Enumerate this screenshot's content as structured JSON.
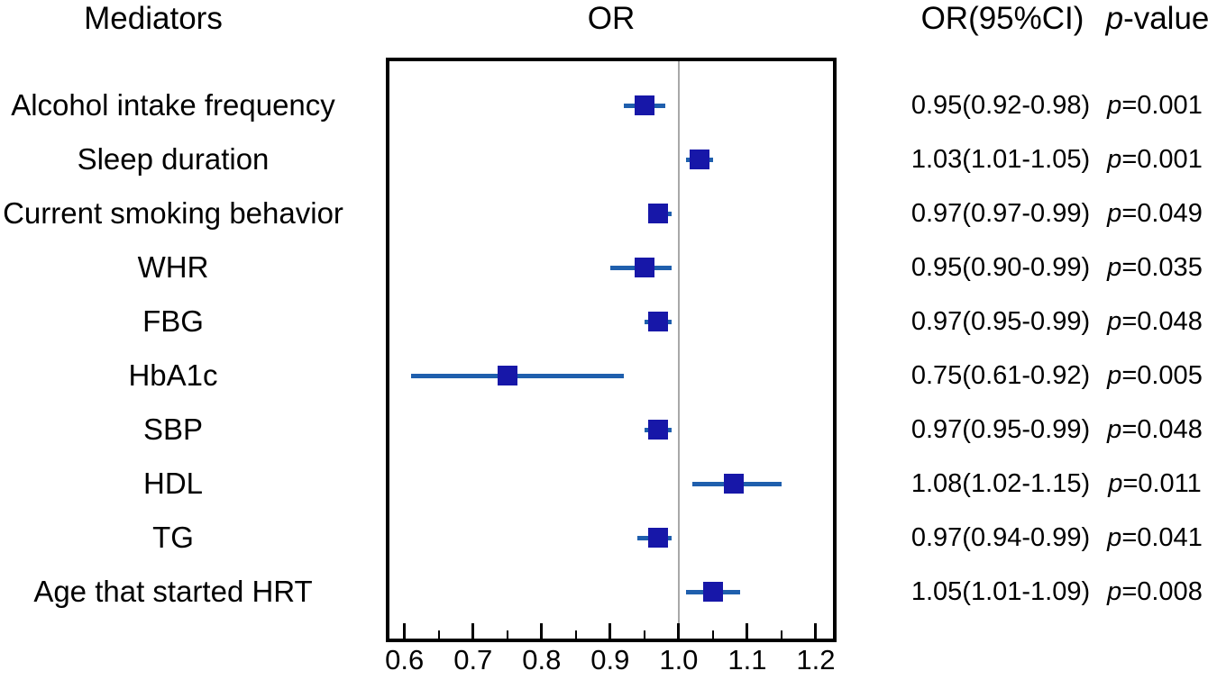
{
  "headers": {
    "mediators": "Mediators",
    "or": "OR",
    "or_ci": "OR(95%CI)",
    "p_value": "p-value"
  },
  "colors": {
    "marker": "#1717a8",
    "ci_line": "#1f5fad",
    "ref_line": "#a8a8a8",
    "box_border": "#000000",
    "text": "#000000"
  },
  "chart_data": {
    "type": "scatter",
    "subtype": "forest-plot",
    "title": "",
    "xlabel": "",
    "ylabel": "",
    "legend": null,
    "grid": false,
    "x_axis": {
      "range": [
        0.578,
        1.225
      ],
      "major_ticks": [
        0.6,
        0.7,
        0.8,
        0.9,
        1.0,
        1.1,
        1.2
      ],
      "minor_ticks": [
        0.65,
        0.75,
        0.85,
        0.95,
        1.05,
        1.15
      ],
      "reference_line": 1.0
    },
    "rows": [
      {
        "label": "Alcohol intake frequency",
        "or": 0.95,
        "ci_low": 0.92,
        "ci_high": 0.98,
        "or_ci": "0.95(0.92-0.98)",
        "p": "p=0.001"
      },
      {
        "label": "Sleep duration",
        "or": 1.03,
        "ci_low": 1.01,
        "ci_high": 1.05,
        "or_ci": "1.03(1.01-1.05)",
        "p": "p=0.001"
      },
      {
        "label": "Current smoking behavior",
        "or": 0.97,
        "ci_low": 0.97,
        "ci_high": 0.99,
        "or_ci": "0.97(0.97-0.99)",
        "p": "p=0.049"
      },
      {
        "label": "WHR",
        "or": 0.95,
        "ci_low": 0.9,
        "ci_high": 0.99,
        "or_ci": "0.95(0.90-0.99)",
        "p": "p=0.035"
      },
      {
        "label": "FBG",
        "or": 0.97,
        "ci_low": 0.95,
        "ci_high": 0.99,
        "or_ci": "0.97(0.95-0.99)",
        "p": "p=0.048"
      },
      {
        "label": "HbA1c",
        "or": 0.75,
        "ci_low": 0.61,
        "ci_high": 0.92,
        "or_ci": "0.75(0.61-0.92)",
        "p": "p=0.005"
      },
      {
        "label": "SBP",
        "or": 0.97,
        "ci_low": 0.95,
        "ci_high": 0.99,
        "or_ci": "0.97(0.95-0.99)",
        "p": "p=0.048"
      },
      {
        "label": "HDL",
        "or": 1.08,
        "ci_low": 1.02,
        "ci_high": 1.15,
        "or_ci": "1.08(1.02-1.15)",
        "p": "p=0.011"
      },
      {
        "label": "TG",
        "or": 0.97,
        "ci_low": 0.94,
        "ci_high": 0.99,
        "or_ci": "0.97(0.94-0.99)",
        "p": "p=0.041"
      },
      {
        "label": "Age that started HRT",
        "or": 1.05,
        "ci_low": 1.01,
        "ci_high": 1.09,
        "or_ci": "1.05(1.01-1.09)",
        "p": "p=0.008"
      }
    ]
  }
}
